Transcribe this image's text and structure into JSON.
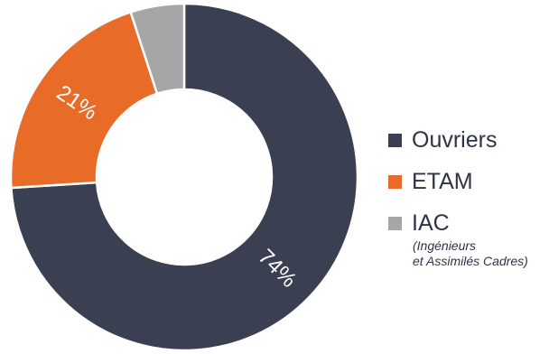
{
  "chart_data": {
    "type": "donut",
    "slices": [
      {
        "name": "Ouvriers",
        "value": 74,
        "label": "74%",
        "color": "#3a3f51"
      },
      {
        "name": "ETAM",
        "value": 21,
        "label": "21%",
        "color": "#e86b28"
      },
      {
        "name": "IAC",
        "value": 5,
        "label": "",
        "color": "#a6a6a6"
      }
    ],
    "title": "",
    "legend_position": "right",
    "legend": [
      {
        "label": "Ouvriers",
        "color": "#3a3f51"
      },
      {
        "label": "ETAM",
        "color": "#e86b28"
      },
      {
        "label": "IAC",
        "color": "#a6a6a6",
        "note": "(Ingénieurs\net Assimilés Cadres)"
      }
    ]
  }
}
